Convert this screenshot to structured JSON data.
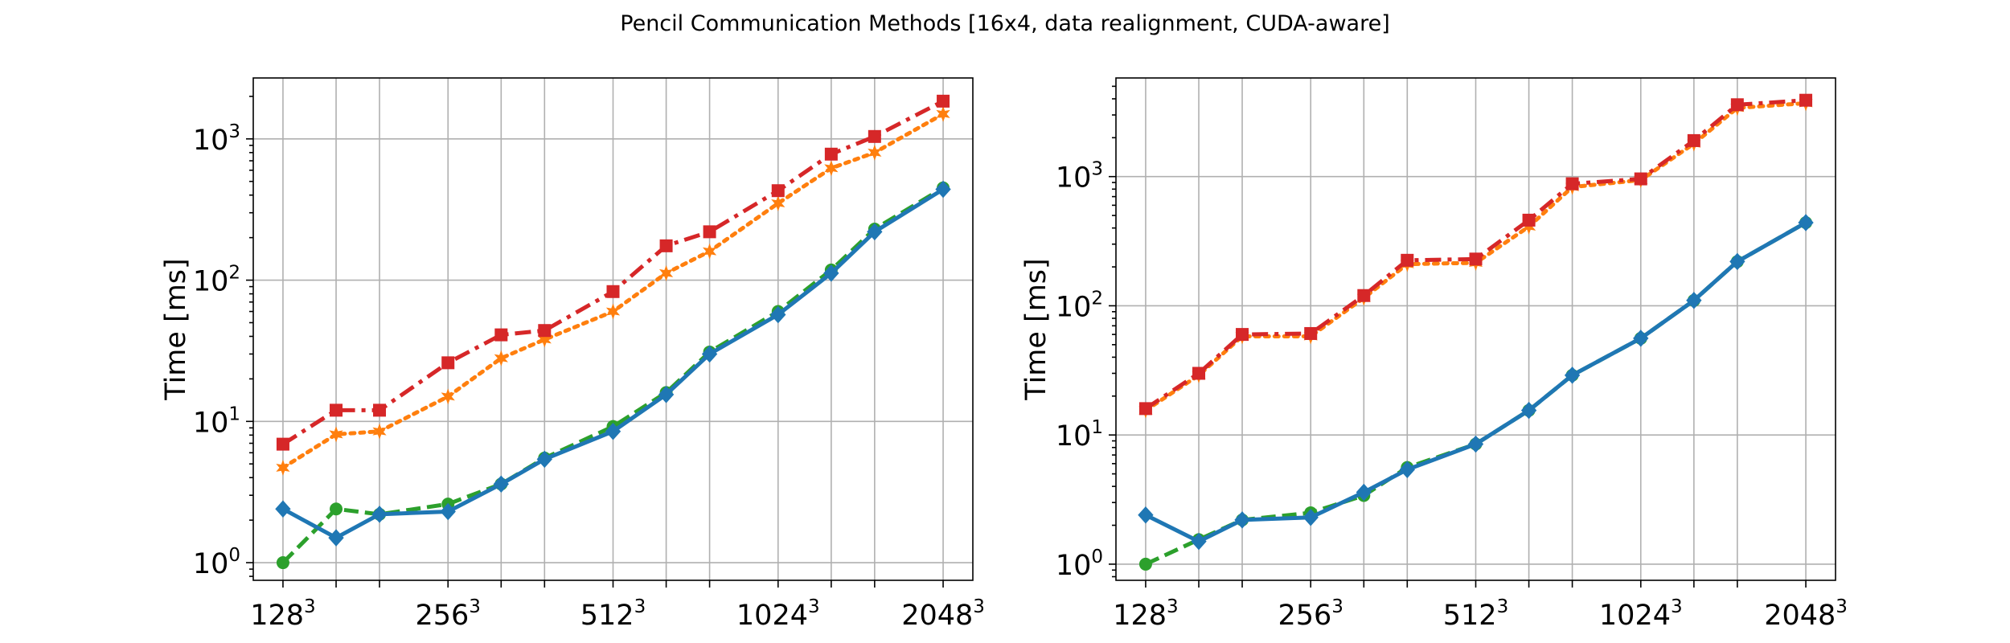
{
  "figure": {
    "title": "Pencil Communication Methods [16x4, data realignment, CUDA-aware]"
  },
  "colors": {
    "blue": "#1f77b4",
    "orange": "#ff7f0e",
    "green": "#2ca02c",
    "red": "#d62728",
    "grid": "#b0b0b0"
  },
  "chart_data": [
    {
      "type": "line",
      "title": "",
      "xlabel": "",
      "ylabel": "Time [ms]",
      "yscale": "log",
      "ylim": [
        0.75,
        2700
      ],
      "grid": true,
      "x": [
        128,
        160,
        192,
        256,
        320,
        384,
        512,
        640,
        768,
        1024,
        1280,
        1536,
        2048
      ],
      "xticks": [
        {
          "x": 128,
          "base": "128",
          "exp": "3"
        },
        {
          "x": 256,
          "base": "256",
          "exp": "3"
        },
        {
          "x": 512,
          "base": "512",
          "exp": "3"
        },
        {
          "x": 1024,
          "base": "1024",
          "exp": "3"
        },
        {
          "x": 2048,
          "base": "2048",
          "exp": "3"
        }
      ],
      "yticks": [
        {
          "y": 1,
          "base": "10",
          "exp": "0"
        },
        {
          "y": 10,
          "base": "10",
          "exp": "1"
        },
        {
          "y": 100,
          "base": "10",
          "exp": "2"
        },
        {
          "y": 1000,
          "base": "10",
          "exp": "3"
        }
      ],
      "series": [
        {
          "color": "#ff7f0e",
          "marker": "star",
          "dash": "dotted",
          "values": [
            4.7,
            8.1,
            8.5,
            15,
            28,
            38,
            60,
            112,
            160,
            350,
            620,
            800,
            1500
          ]
        },
        {
          "color": "#d62728",
          "marker": "square",
          "dash": "dashdot",
          "values": [
            6.9,
            12,
            12,
            26,
            41,
            44,
            83,
            175,
            220,
            430,
            780,
            1040,
            1850
          ]
        },
        {
          "color": "#2ca02c",
          "marker": "circle",
          "dash": "dashed",
          "values": [
            1.0,
            2.4,
            2.2,
            2.6,
            3.6,
            5.5,
            9.2,
            16,
            31,
            60,
            118,
            230,
            450
          ]
        },
        {
          "color": "#1f77b4",
          "marker": "diamond",
          "dash": "solid",
          "values": [
            2.4,
            1.5,
            2.2,
            2.3,
            3.6,
            5.4,
            8.5,
            15.5,
            30,
            57,
            112,
            220,
            440
          ]
        }
      ]
    },
    {
      "type": "line",
      "title": "",
      "xlabel": "",
      "ylabel": "Time [ms]",
      "yscale": "log",
      "ylim": [
        0.75,
        5800
      ],
      "grid": true,
      "x": [
        128,
        160,
        192,
        256,
        320,
        384,
        512,
        640,
        768,
        1024,
        1280,
        1536,
        2048
      ],
      "xticks": [
        {
          "x": 128,
          "base": "128",
          "exp": "3"
        },
        {
          "x": 256,
          "base": "256",
          "exp": "3"
        },
        {
          "x": 512,
          "base": "512",
          "exp": "3"
        },
        {
          "x": 1024,
          "base": "1024",
          "exp": "3"
        },
        {
          "x": 2048,
          "base": "2048",
          "exp": "3"
        }
      ],
      "yticks": [
        {
          "y": 1,
          "base": "10",
          "exp": "0"
        },
        {
          "y": 10,
          "base": "10",
          "exp": "1"
        },
        {
          "y": 100,
          "base": "10",
          "exp": "2"
        },
        {
          "y": 1000,
          "base": "10",
          "exp": "3"
        }
      ],
      "series": [
        {
          "color": "#ff7f0e",
          "marker": "star",
          "dash": "dotted",
          "values": [
            15.5,
            29,
            58,
            58,
            115,
            210,
            215,
            410,
            830,
            940,
            1800,
            3400,
            3700
          ]
        },
        {
          "color": "#d62728",
          "marker": "square",
          "dash": "dashdot",
          "values": [
            16,
            30,
            60,
            61,
            120,
            225,
            230,
            460,
            880,
            960,
            1900,
            3600,
            3900
          ]
        },
        {
          "color": "#2ca02c",
          "marker": "circle",
          "dash": "dashed",
          "values": [
            1.0,
            1.55,
            2.2,
            2.5,
            3.4,
            5.6,
            8.5,
            15.5,
            29,
            56,
            110,
            220,
            440
          ]
        },
        {
          "color": "#1f77b4",
          "marker": "diamond",
          "dash": "solid",
          "values": [
            2.4,
            1.5,
            2.2,
            2.3,
            3.6,
            5.4,
            8.5,
            15.5,
            29,
            56,
            110,
            220,
            440
          ]
        }
      ]
    }
  ]
}
